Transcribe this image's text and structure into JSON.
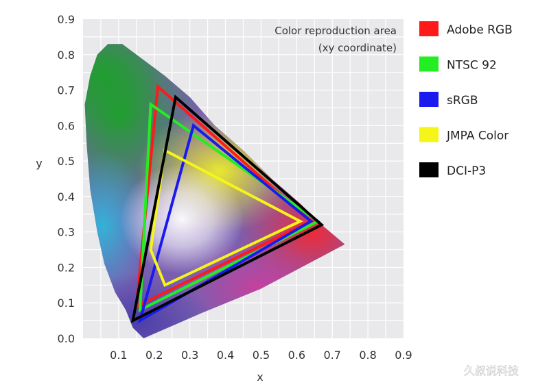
{
  "chart_data": {
    "type": "line",
    "title": "Color reproduction area",
    "subtitle": "(xy coordinate)",
    "xlabel": "x",
    "ylabel": "y",
    "xlim": [
      0,
      0.9
    ],
    "ylim": [
      0,
      0.9
    ],
    "x_ticks": [
      "0.1",
      "0.2",
      "0.3",
      "0.4",
      "0.5",
      "0.6",
      "0.7",
      "0.8",
      "0.9"
    ],
    "y_ticks": [
      "0.0",
      "0.1",
      "0.2",
      "0.3",
      "0.4",
      "0.5",
      "0.6",
      "0.7",
      "0.8",
      "0.9"
    ],
    "grid": true,
    "legend_position": "right",
    "series": [
      {
        "name": "Adobe RGB",
        "color": "#ff1a1a",
        "points": [
          [
            0.21,
            0.71
          ],
          [
            0.64,
            0.33
          ],
          [
            0.15,
            0.09
          ]
        ]
      },
      {
        "name": "NTSC 92",
        "color": "#22ee22",
        "points": [
          [
            0.19,
            0.66
          ],
          [
            0.66,
            0.33
          ],
          [
            0.16,
            0.08
          ]
        ]
      },
      {
        "name": "sRGB",
        "color": "#1a1aee",
        "points": [
          [
            0.31,
            0.6
          ],
          [
            0.64,
            0.33
          ],
          [
            0.16,
            0.05
          ]
        ]
      },
      {
        "name": "JMPA Color",
        "color": "#f5f51a",
        "points": [
          [
            0.23,
            0.53
          ],
          [
            0.61,
            0.33
          ],
          [
            0.23,
            0.15
          ],
          [
            0.19,
            0.25
          ]
        ]
      },
      {
        "name": "DCI-P3",
        "color": "#000000",
        "points": [
          [
            0.26,
            0.68
          ],
          [
            0.67,
            0.32
          ],
          [
            0.14,
            0.05
          ]
        ]
      }
    ],
    "spectral_locus": [
      [
        0.17,
        0.0
      ],
      [
        0.14,
        0.03
      ],
      [
        0.12,
        0.08
      ],
      [
        0.09,
        0.13
      ],
      [
        0.06,
        0.21
      ],
      [
        0.04,
        0.3
      ],
      [
        0.02,
        0.42
      ],
      [
        0.01,
        0.55
      ],
      [
        0.005,
        0.66
      ],
      [
        0.02,
        0.74
      ],
      [
        0.04,
        0.8
      ],
      [
        0.07,
        0.83
      ],
      [
        0.11,
        0.83
      ],
      [
        0.15,
        0.8
      ],
      [
        0.23,
        0.74
      ],
      [
        0.3,
        0.68
      ],
      [
        0.37,
        0.6
      ],
      [
        0.45,
        0.53
      ],
      [
        0.53,
        0.45
      ],
      [
        0.61,
        0.38
      ],
      [
        0.67,
        0.32
      ],
      [
        0.735,
        0.265
      ],
      [
        0.5,
        0.14
      ],
      [
        0.33,
        0.07
      ],
      [
        0.17,
        0.0
      ]
    ]
  },
  "watermark": "久叔说科技"
}
